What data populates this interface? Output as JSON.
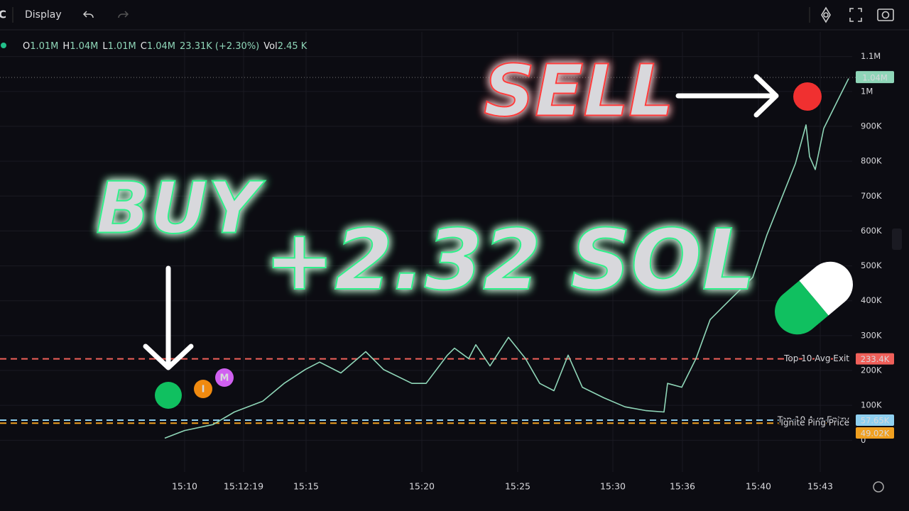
{
  "toolbar": {
    "symbol": "C",
    "display": "Display"
  },
  "ohlc": {
    "items": [
      {
        "key": "O",
        "value": "1.01M"
      },
      {
        "key": "H",
        "value": "1.04M"
      },
      {
        "key": "L",
        "value": "1.01M"
      },
      {
        "key": "C",
        "value": "1.04M"
      }
    ],
    "change": "23.31K (+2.30%)",
    "vol_key": "Vol",
    "vol": "2.45 K"
  },
  "overlays": {
    "buy": "BUY",
    "sell": "SELL",
    "profit": "+2.32 SOL",
    "markers": [
      "I",
      "M"
    ]
  },
  "chart_data": {
    "type": "line",
    "color": "#8fd6b8",
    "grid": true,
    "x": [
      23.2,
      26,
      30,
      33,
      37,
      40,
      43,
      45,
      48,
      51.5,
      54,
      58,
      60,
      63,
      64,
      66,
      67,
      69,
      71.6,
      74,
      76,
      78,
      80,
      82,
      85,
      88,
      91,
      93.5,
      94,
      96,
      98,
      100,
      103,
      106,
      108,
      110,
      112,
      113.5,
      114,
      114.8,
      116,
      118,
      119.5
    ],
    "values": [
      6000,
      28000,
      45000,
      81000,
      112000,
      163000,
      203000,
      224000,
      193000,
      254000,
      203000,
      163000,
      163000,
      244000,
      264000,
      234000,
      274000,
      213000,
      295000,
      234000,
      163000,
      142000,
      244000,
      152000,
      122000,
      96000,
      85000,
      81000,
      163000,
      152000,
      234000,
      346000,
      407000,
      467000,
      589000,
      691000,
      793000,
      904000,
      813000,
      776000,
      894000,
      976000,
      1037000
    ],
    "xlim": [
      0,
      120
    ],
    "xticks": [
      {
        "value": 26,
        "label": "15:10"
      },
      {
        "value": 34.3,
        "label": "15:12:19"
      },
      {
        "value": 43.1,
        "label": "15:15"
      },
      {
        "value": 59.4,
        "label": "15:20"
      },
      {
        "value": 72.9,
        "label": "15:25"
      },
      {
        "value": 86.3,
        "label": "15:30"
      },
      {
        "value": 96.1,
        "label": "15:36"
      },
      {
        "value": 106.8,
        "label": "15:40"
      },
      {
        "value": 115.5,
        "label": "15:43"
      }
    ],
    "ylim": [
      -40000,
      1140000
    ],
    "yticks": [
      0,
      {
        "value": 100000,
        "label": "100K"
      },
      {
        "value": 200000,
        "label": "200K"
      },
      {
        "value": 300000,
        "label": "300K"
      },
      {
        "value": 400000,
        "label": "400K"
      },
      {
        "value": 500000,
        "label": "500K"
      },
      {
        "value": 600000,
        "label": "600K"
      },
      {
        "value": 700000,
        "label": "700K"
      },
      {
        "value": 800000,
        "label": "800K"
      },
      {
        "value": 900000,
        "label": "900K"
      },
      {
        "value": 1000000,
        "label": "1M"
      },
      {
        "value": 1100000,
        "label": "1.1M"
      }
    ],
    "reference_lines": [
      {
        "name": "Top 10 Avg Exit",
        "value": 233400,
        "value_label": "233.4K",
        "color": "#f0605a"
      },
      {
        "name": "Top 10 Avg Entry",
        "value": 57650,
        "value_label": "57.65K",
        "color": "#8fd0f0"
      },
      {
        "name": "Ignite Ping Price",
        "value": 49020,
        "value_label": "49.02K",
        "color": "#f0a020"
      }
    ],
    "last_price": {
      "value": 1040000,
      "label": "1.04M",
      "color": "#8fd6b8"
    }
  }
}
